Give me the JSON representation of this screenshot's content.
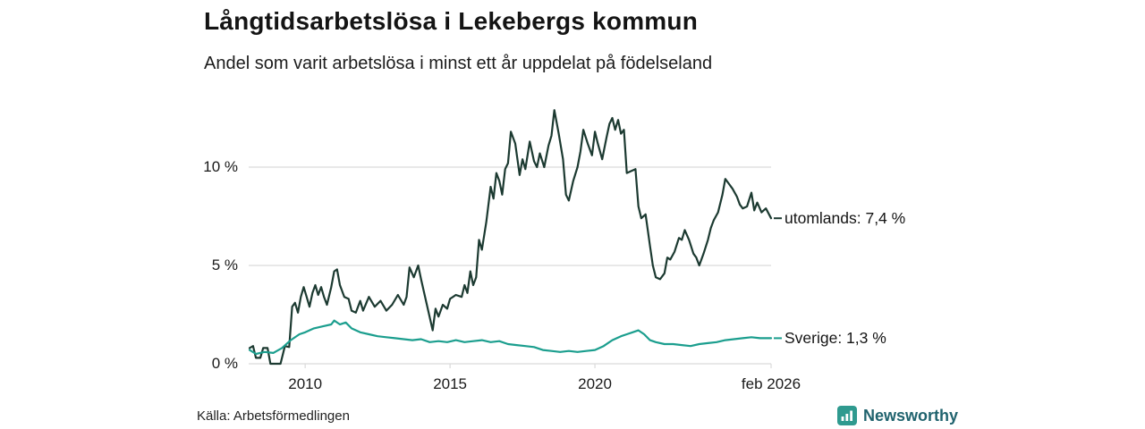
{
  "title": "Långtidsarbetslösa i Lekebergs kommun",
  "subtitle": "Andel som varit arbetslösa i minst ett år uppdelat på födelseland",
  "source": "Källa: Arbetsförmedlingen",
  "brand": {
    "name": "Newsworthy"
  },
  "colors": {
    "utomlands_line": "#1c3a31",
    "sverige_line": "#1b9e8e",
    "grid": "#dadada",
    "text": "#1a1a1a",
    "brand_icon": "#2f9a8f",
    "brand_text": "#20636e"
  },
  "chart_data": {
    "type": "line",
    "title": "Långtidsarbetslösa i Lekebergs kommun",
    "subtitle": "Andel som varit arbetslösa i minst ett år uppdelat på födelseland",
    "xlabel": "",
    "ylabel": "",
    "grid": "horizontal",
    "legend_position": "right-of-line-end",
    "xlim": [
      2008.05,
      2026.08
    ],
    "ylim": [
      0,
      13.5
    ],
    "y_ticks": [
      {
        "v": 0,
        "label": "0 %"
      },
      {
        "v": 5,
        "label": "5 %"
      },
      {
        "v": 10,
        "label": "10 %"
      }
    ],
    "x_ticks": [
      {
        "x": 2010,
        "label": "2010"
      },
      {
        "x": 2015,
        "label": "2015"
      },
      {
        "x": 2020,
        "label": "2020"
      },
      {
        "x": 2026.08,
        "label": "feb 2026"
      }
    ],
    "series": [
      {
        "name": "utomlands",
        "label": "utomlands: 7,4 %",
        "end_value": "7,4 %",
        "color": "#1c3a31",
        "x": [
          2008.08,
          2008.2,
          2008.3,
          2008.45,
          2008.55,
          2008.7,
          2008.8,
          2009.0,
          2009.15,
          2009.3,
          2009.45,
          2009.55,
          2009.65,
          2009.75,
          2009.85,
          2009.95,
          2010.05,
          2010.15,
          2010.25,
          2010.35,
          2010.45,
          2010.55,
          2010.65,
          2010.75,
          2010.9,
          2011.0,
          2011.1,
          2011.2,
          2011.35,
          2011.5,
          2011.6,
          2011.75,
          2011.9,
          2012.0,
          2012.2,
          2012.4,
          2012.6,
          2012.8,
          2013.0,
          2013.2,
          2013.4,
          2013.5,
          2013.6,
          2013.75,
          2013.9,
          2014.0,
          2014.2,
          2014.4,
          2014.5,
          2014.6,
          2014.75,
          2014.9,
          2015.0,
          2015.2,
          2015.4,
          2015.5,
          2015.6,
          2015.7,
          2015.8,
          2015.9,
          2016.0,
          2016.1,
          2016.25,
          2016.4,
          2016.5,
          2016.6,
          2016.7,
          2016.8,
          2016.9,
          2017.0,
          2017.1,
          2017.25,
          2017.4,
          2017.5,
          2017.6,
          2017.75,
          2017.9,
          2018.0,
          2018.1,
          2018.25,
          2018.4,
          2018.5,
          2018.6,
          2018.75,
          2018.9,
          2019.0,
          2019.1,
          2019.25,
          2019.4,
          2019.5,
          2019.6,
          2019.75,
          2019.9,
          2020.0,
          2020.1,
          2020.25,
          2020.4,
          2020.5,
          2020.6,
          2020.7,
          2020.8,
          2020.9,
          2021.0,
          2021.1,
          2021.25,
          2021.4,
          2021.5,
          2021.6,
          2021.75,
          2021.9,
          2022.0,
          2022.1,
          2022.25,
          2022.4,
          2022.5,
          2022.6,
          2022.75,
          2022.9,
          2023.0,
          2023.1,
          2023.25,
          2023.4,
          2023.5,
          2023.6,
          2023.75,
          2023.9,
          2024.0,
          2024.1,
          2024.25,
          2024.4,
          2024.5,
          2024.6,
          2024.75,
          2024.9,
          2025.0,
          2025.1,
          2025.25,
          2025.4,
          2025.5,
          2025.6,
          2025.75,
          2025.9,
          2026.08
        ],
        "values": [
          0.8,
          0.9,
          0.3,
          0.3,
          0.8,
          0.8,
          0.0,
          0.0,
          0.0,
          0.9,
          0.85,
          2.9,
          3.1,
          2.6,
          3.4,
          3.9,
          3.4,
          2.9,
          3.6,
          4.0,
          3.5,
          3.9,
          3.4,
          3.0,
          3.9,
          4.7,
          4.8,
          4.0,
          3.4,
          3.3,
          2.7,
          2.6,
          3.2,
          2.7,
          3.4,
          2.9,
          3.2,
          2.7,
          3.0,
          3.5,
          3.0,
          3.4,
          4.9,
          4.4,
          5.0,
          4.3,
          3.0,
          1.7,
          2.8,
          2.4,
          3.0,
          2.8,
          3.3,
          3.5,
          3.4,
          4.0,
          3.6,
          4.7,
          4.0,
          4.4,
          6.3,
          5.8,
          7.2,
          9.0,
          8.4,
          9.7,
          9.3,
          8.6,
          9.9,
          10.2,
          11.8,
          11.2,
          9.6,
          10.4,
          9.9,
          11.3,
          10.3,
          10.0,
          10.7,
          10.0,
          11.1,
          11.6,
          12.9,
          11.7,
          10.4,
          8.6,
          8.3,
          9.3,
          10.0,
          10.8,
          11.9,
          11.2,
          10.6,
          11.8,
          11.2,
          10.4,
          11.5,
          12.2,
          12.5,
          11.9,
          12.4,
          11.7,
          11.9,
          9.7,
          9.8,
          9.9,
          8.0,
          7.4,
          7.6,
          6.0,
          5.0,
          4.4,
          4.3,
          4.6,
          5.4,
          5.3,
          5.7,
          6.4,
          6.3,
          6.8,
          6.3,
          5.6,
          5.4,
          5.0,
          5.6,
          6.3,
          6.9,
          7.3,
          7.7,
          8.6,
          9.4,
          9.2,
          8.9,
          8.5,
          8.1,
          7.9,
          8.0,
          8.7,
          7.8,
          8.2,
          7.7,
          7.9,
          7.4
        ]
      },
      {
        "name": "sverige",
        "label": "Sverige: 1,3 %",
        "end_value": "1,3 %",
        "color": "#1b9e8e",
        "x": [
          2008.08,
          2008.3,
          2008.6,
          2008.9,
          2009.2,
          2009.5,
          2009.8,
          2010.0,
          2010.3,
          2010.6,
          2010.9,
          2011.0,
          2011.2,
          2011.4,
          2011.6,
          2011.9,
          2012.2,
          2012.5,
          2012.8,
          2013.1,
          2013.4,
          2013.7,
          2014.0,
          2014.3,
          2014.6,
          2014.9,
          2015.2,
          2015.5,
          2015.8,
          2016.1,
          2016.4,
          2016.7,
          2017.0,
          2017.3,
          2017.6,
          2017.9,
          2018.2,
          2018.5,
          2018.8,
          2019.1,
          2019.4,
          2019.7,
          2020.0,
          2020.3,
          2020.6,
          2020.9,
          2021.1,
          2021.3,
          2021.5,
          2021.7,
          2021.9,
          2022.1,
          2022.4,
          2022.7,
          2023.0,
          2023.3,
          2023.6,
          2023.9,
          2024.2,
          2024.5,
          2024.8,
          2025.1,
          2025.4,
          2025.7,
          2026.08
        ],
        "values": [
          0.7,
          0.5,
          0.6,
          0.55,
          0.8,
          1.2,
          1.5,
          1.6,
          1.8,
          1.9,
          2.0,
          2.2,
          2.0,
          2.1,
          1.8,
          1.6,
          1.5,
          1.4,
          1.35,
          1.3,
          1.25,
          1.2,
          1.25,
          1.1,
          1.15,
          1.1,
          1.2,
          1.1,
          1.15,
          1.2,
          1.1,
          1.15,
          1.0,
          0.95,
          0.9,
          0.85,
          0.7,
          0.65,
          0.6,
          0.65,
          0.6,
          0.65,
          0.7,
          0.9,
          1.2,
          1.4,
          1.5,
          1.6,
          1.7,
          1.5,
          1.2,
          1.1,
          1.0,
          1.0,
          0.95,
          0.9,
          1.0,
          1.05,
          1.1,
          1.2,
          1.25,
          1.3,
          1.35,
          1.3,
          1.3
        ]
      }
    ]
  }
}
